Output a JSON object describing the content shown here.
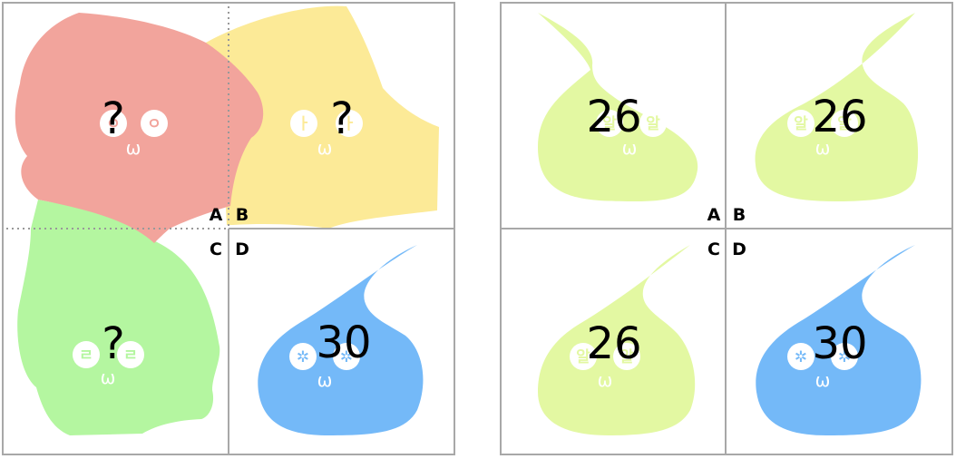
{
  "colors": {
    "border": "#a8a8a8",
    "red": "#f2a49c",
    "yellow": "#fcea97",
    "green": "#b4f6a0",
    "blue": "#74b9f8",
    "lime": "#e3f8a2"
  },
  "quadrant_labels": {
    "a": "A",
    "b": "B",
    "c": "C",
    "d": "D"
  },
  "left_board": {
    "a": {
      "value": "?",
      "eye": "ㅇ",
      "mouth": "ω"
    },
    "b": {
      "value": "?",
      "eye": "ㅏ",
      "mouth": "ω"
    },
    "c": {
      "value": "?",
      "eye": "ㄹ",
      "mouth": "ω"
    },
    "d": {
      "value": "30",
      "eye": "✲",
      "mouth": "ω"
    }
  },
  "right_board": {
    "a": {
      "value": "26",
      "eye": "알",
      "mouth": "ω"
    },
    "b": {
      "value": "26",
      "eye": "알",
      "mouth": "ω"
    },
    "c": {
      "value": "26",
      "eye": "알",
      "mouth": "ω"
    },
    "d": {
      "value": "30",
      "eye": "✲",
      "mouth": "ω"
    }
  }
}
